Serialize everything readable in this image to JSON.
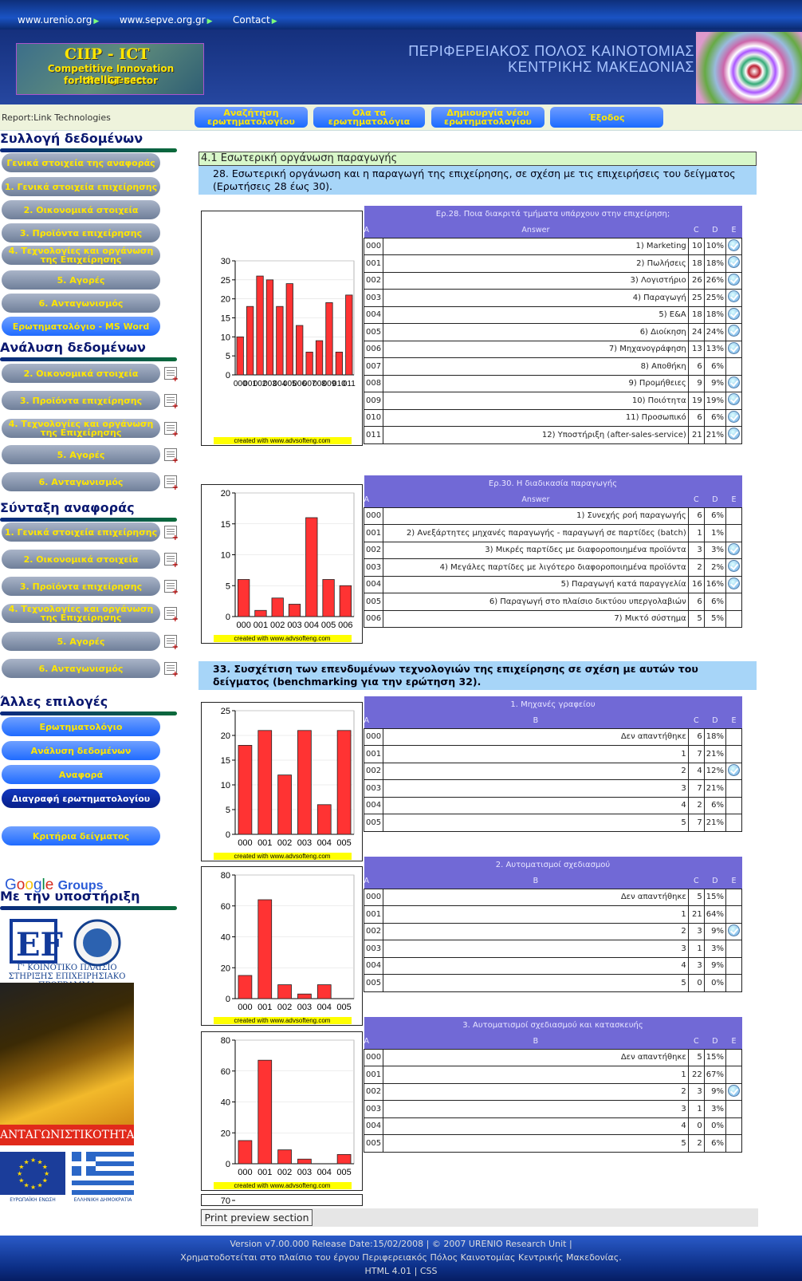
{
  "topnav": {
    "links": [
      "www.urenio.org",
      "www.sepve.org.gr",
      "Contact"
    ]
  },
  "banner": {
    "logo_l1": "CIIP - ICT",
    "logo_l2": "Competitive Innovation Intelligence",
    "logo_l3": "for the ICT sector",
    "title_l1": "ΠΕΡΙΦΕΡΕΙΑΚΟΣ ΠΟΛΟΣ ΚΑΙΝΟΤΟΜΙΑΣ",
    "title_l2": "ΚΕΝΤΡΙΚΗΣ ΜΑΚΕΔΟΝΙΑΣ"
  },
  "navbar": {
    "report": "Report:Link Technologies",
    "b1": "Αναζήτηση ερωτηματολογίου",
    "b2": "Ολα τα ερωτηματολόγια",
    "b3": "Δημιουργία νέου ερωτηματολογίου",
    "b4": "Έξοδος"
  },
  "sidebar": {
    "h1": "Συλλογή δεδομένων",
    "collect": [
      "Γενικά στοιχεία της αναφοράς",
      "1. Γενικά στοιχεία επιχείρησης",
      "2. Οικονομικά στοιχεία",
      "3. Προϊόντα επιχείρησης",
      "4. Τεχνολογίες και οργάνωση της Επιχείρησης",
      "5. Αγορές",
      "6. Ανταγωνισμός",
      "Ερωτηματολόγιο - MS Word"
    ],
    "h2": "Ανάλυση δεδομένων",
    "analysis": [
      "2. Οικονομικά στοιχεία",
      "3. Προϊόντα επιχείρησης",
      "4. Τεχνολογίες και οργάνωση της Επιχείρησης",
      "5. Αγορές",
      "6. Ανταγωνισμός"
    ],
    "h3": "Σύνταξη αναφοράς",
    "report": [
      "1. Γενικά στοιχεία επιχείρησης",
      "2. Οικονομικά στοιχεία",
      "3. Προϊόντα επιχείρησης",
      "4. Τεχνολογίες και οργάνωση της Επιχείρησης",
      "5. Αγορές",
      "6. Ανταγωνισμός"
    ],
    "h4": "Άλλες επιλογές",
    "other": [
      "Ερωτηματολόγιο",
      "Ανάλυση δεδομένων",
      "Αναφορά",
      "Διαγραφή ερωτηματολογίου"
    ],
    "criteria": "Κριτήρια δείγματος",
    "h5": "Με την υποστήριξη",
    "supp1": "Γ' ΚΟΙΝΟΤΙΚΟ ΠΛΑΙΣΙΟ ΣΤΗΡΙΞΗΣ ΕΠΙΧΕΙΡΗΣΙΑΚΟ ΠΡΟΓΡΑΜΜΑ",
    "supp2": "ΑΝΤΑΓΩΝΙΣΤΙΚΟΤΗΤΑ",
    "eu": "ΕΥΡΩΠΑΪΚΗ ΕΝΩΣΗ",
    "gr": "ΕΛΛΗΝΙΚΗ ΔΗΜΟΚΡΑΤΙΑ"
  },
  "main": {
    "section": "4.1 Εσωτερική οργάνωση παραγωγής",
    "q28": "28. Εσωτερική οργάνωση και η παραγωγή της επιχείρησης, σε σχέση με τις επιχειρήσεις του δείγματος (Ερωτήσεις 28 έως 30).",
    "q33": "33. Συσχέτιση των επενδυμένων τεχνολογιών της επιχείρησης σε σχέση με αυτών του δείγματος (benchmarking για την ερώτηση 32).",
    "credit": "created with www.advsofteng.com",
    "print": "Print preview section"
  },
  "tables": [
    {
      "title": "Ερ.28. Ποια διακριτά τμήματα υπάρχουν στην επιχείρηση;",
      "h": [
        "A",
        "Answer",
        "C",
        "D",
        "E"
      ],
      "rows": [
        [
          "000",
          "1) Marketing",
          "10",
          "10%",
          1
        ],
        [
          "001",
          "2) Πωλήσεις",
          "18",
          "18%",
          1
        ],
        [
          "002",
          "3) Λογιστήριο",
          "26",
          "26%",
          1
        ],
        [
          "003",
          "4) Παραγωγή",
          "25",
          "25%",
          1
        ],
        [
          "004",
          "5) Ε&Α",
          "18",
          "18%",
          1
        ],
        [
          "005",
          "6) Διοίκηση",
          "24",
          "24%",
          1
        ],
        [
          "006",
          "7) Μηχανογράφηση",
          "13",
          "13%",
          1
        ],
        [
          "007",
          "8) Αποθήκη",
          "6",
          "6%",
          0
        ],
        [
          "008",
          "9) Προμήθειες",
          "9",
          "9%",
          1
        ],
        [
          "009",
          "10) Ποιότητα",
          "19",
          "19%",
          1
        ],
        [
          "010",
          "11) Προσωπικό",
          "6",
          "6%",
          1
        ],
        [
          "011",
          "12) Υποστήριξη (after-sales-service)",
          "21",
          "21%",
          1
        ]
      ]
    },
    {
      "title": "Ερ.30. Η διαδικασία παραγωγής",
      "h": [
        "A",
        "Answer",
        "C",
        "D",
        "E"
      ],
      "rows": [
        [
          "000",
          "1) Συνεχής ροή παραγωγής",
          "6",
          "6%",
          0
        ],
        [
          "001",
          "2) Ανεξάρτητες μηχανές παραγωγής - παραγωγή σε παρτίδες (batch)",
          "1",
          "1%",
          0
        ],
        [
          "002",
          "3) Μικρές παρτίδες με διαφοροποιημένα προϊόντα",
          "3",
          "3%",
          1
        ],
        [
          "003",
          "4) Μεγάλες παρτίδες με λιγότερο διαφοροποιημένα προϊόντα",
          "2",
          "2%",
          1
        ],
        [
          "004",
          "5) Παραγωγή κατά παραγγελία",
          "16",
          "16%",
          1
        ],
        [
          "005",
          "6) Παραγωγή στο πλαίσιο δικτύου υπεργολαβιών",
          "6",
          "6%",
          0
        ],
        [
          "006",
          "7) Μικτό σύστημα",
          "5",
          "5%",
          0
        ]
      ]
    },
    {
      "title": "1. Μηχανές γραφείου",
      "h": [
        "A",
        "B",
        "C",
        "D",
        "E"
      ],
      "rows": [
        [
          "000",
          "Δεν απαντήθηκε",
          "6",
          "18%",
          0
        ],
        [
          "001",
          "1",
          "7",
          "21%",
          0
        ],
        [
          "002",
          "2",
          "4",
          "12%",
          1
        ],
        [
          "003",
          "3",
          "7",
          "21%",
          0
        ],
        [
          "004",
          "4",
          "2",
          "6%",
          0
        ],
        [
          "005",
          "5",
          "7",
          "21%",
          0
        ]
      ]
    },
    {
      "title": "2. Αυτοματισμοί σχεδιασμού",
      "h": [
        "A",
        "B",
        "C",
        "D",
        "E"
      ],
      "rows": [
        [
          "000",
          "Δεν απαντήθηκε",
          "5",
          "15%",
          0
        ],
        [
          "001",
          "1",
          "21",
          "64%",
          0
        ],
        [
          "002",
          "2",
          "3",
          "9%",
          1
        ],
        [
          "003",
          "3",
          "1",
          "3%",
          0
        ],
        [
          "004",
          "4",
          "3",
          "9%",
          0
        ],
        [
          "005",
          "5",
          "0",
          "0%",
          0
        ]
      ]
    },
    {
      "title": "3. Αυτοματισμοί σχεδιασμού και κατασκευής",
      "h": [
        "A",
        "B",
        "C",
        "D",
        "E"
      ],
      "rows": [
        [
          "000",
          "Δεν απαντήθηκε",
          "5",
          "15%",
          0
        ],
        [
          "001",
          "1",
          "22",
          "67%",
          0
        ],
        [
          "002",
          "2",
          "3",
          "9%",
          1
        ],
        [
          "003",
          "3",
          "1",
          "3%",
          0
        ],
        [
          "004",
          "4",
          "0",
          "0%",
          0
        ],
        [
          "005",
          "5",
          "2",
          "6%",
          0
        ]
      ]
    }
  ],
  "chart_data": [
    {
      "type": "bar",
      "categories": [
        "000",
        "001",
        "002",
        "003",
        "004",
        "005",
        "006",
        "007",
        "008",
        "009",
        "010",
        "011"
      ],
      "values": [
        10,
        18,
        26,
        25,
        18,
        24,
        13,
        6,
        9,
        19,
        6,
        21
      ],
      "ylim": [
        0,
        30
      ],
      "yticks": [
        0,
        5,
        10,
        15,
        20,
        25,
        30
      ],
      "xticklabels": [
        "000",
        "001",
        "002",
        "003",
        "004",
        "005",
        "006",
        "007",
        "008",
        "009",
        "010",
        "011"
      ],
      "title": "",
      "xlabel": "",
      "ylabel": ""
    },
    {
      "type": "bar",
      "categories": [
        "000",
        "001",
        "002",
        "003",
        "004",
        "005",
        "006"
      ],
      "values": [
        6,
        1,
        3,
        2,
        16,
        6,
        5
      ],
      "ylim": [
        0,
        20
      ],
      "yticks": [
        0,
        5,
        10,
        15,
        20
      ],
      "title": "",
      "xlabel": "",
      "ylabel": ""
    },
    {
      "type": "bar",
      "categories": [
        "000",
        "001",
        "002",
        "003",
        "004",
        "005"
      ],
      "values": [
        18,
        21,
        12,
        21,
        6,
        21
      ],
      "ylim": [
        0,
        25
      ],
      "yticks": [
        0,
        5,
        10,
        15,
        20,
        25
      ],
      "title": "",
      "xlabel": "",
      "ylabel": ""
    },
    {
      "type": "bar",
      "categories": [
        "000",
        "001",
        "002",
        "003",
        "004",
        "005"
      ],
      "values": [
        15,
        64,
        9,
        3,
        9,
        0
      ],
      "ylim": [
        0,
        80
      ],
      "yticks": [
        0,
        20,
        40,
        60,
        80
      ],
      "title": "",
      "xlabel": "",
      "ylabel": ""
    },
    {
      "type": "bar",
      "categories": [
        "000",
        "001",
        "002",
        "003",
        "004",
        "005"
      ],
      "values": [
        15,
        67,
        9,
        3,
        0,
        6
      ],
      "ylim": [
        0,
        80
      ],
      "yticks": [
        0,
        20,
        40,
        60,
        80
      ],
      "title": "",
      "xlabel": "",
      "ylabel": ""
    }
  ],
  "partial_chart_tick": "70",
  "footer": {
    "l1": "Version v7.00.000 Release Date:15/02/2008 | © 2007 URENIO Research Unit |",
    "l2": "Χρηματοδοτείται στο πλαίσιο του έργου Περιφερειακός Πόλος Καινοτομίας Κεντρικής Μακεδονίας.",
    "l3a": "HTML 4.01",
    "l3b": "CSS"
  }
}
